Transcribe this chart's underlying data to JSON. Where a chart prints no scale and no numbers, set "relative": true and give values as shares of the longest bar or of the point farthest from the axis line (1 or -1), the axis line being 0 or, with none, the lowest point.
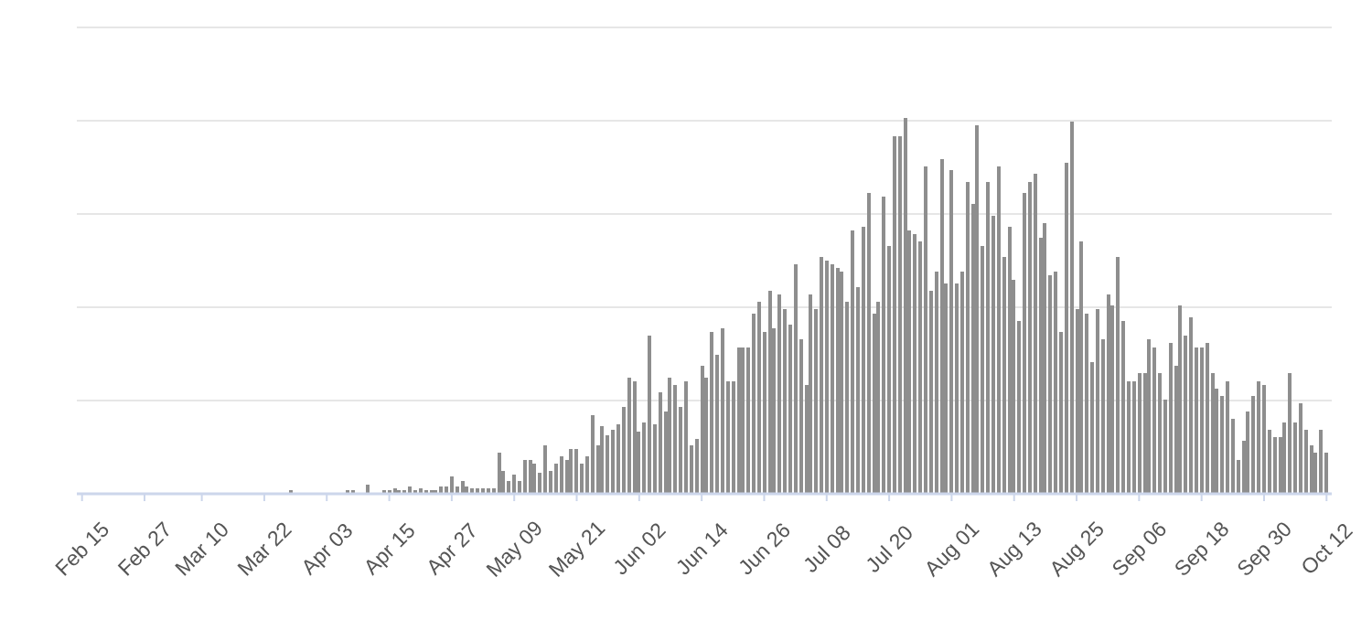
{
  "chart_data": {
    "type": "bar",
    "relative": true,
    "color": "#8e8e8e",
    "grid": "y",
    "tick_labels": "x",
    "legend": false,
    "xlim": [
      "--02-14",
      "--10-13"
    ],
    "xticks": [
      {
        "value": "--02-15",
        "label": "Feb 15"
      },
      {
        "value": "--02-27",
        "label": "Feb 27"
      },
      {
        "value": "--03-10",
        "label": "Mar 10"
      },
      {
        "value": "--03-22",
        "label": "Mar 22"
      },
      {
        "value": "--04-03",
        "label": "Apr 03"
      },
      {
        "value": "--04-15",
        "label": "Apr 15"
      },
      {
        "value": "--04-27",
        "label": "Apr 27"
      },
      {
        "value": "--05-09",
        "label": "May 09"
      },
      {
        "value": "--05-21",
        "label": "May 21"
      },
      {
        "value": "--06-02",
        "label": "Jun 02"
      },
      {
        "value": "--06-14",
        "label": "Jun 14"
      },
      {
        "value": "--06-26",
        "label": "Jun 26"
      },
      {
        "value": "--07-08",
        "label": "Jul 08"
      },
      {
        "value": "--07-20",
        "label": "Jul 20"
      },
      {
        "value": "--08-01",
        "label": "Aug 01"
      },
      {
        "value": "--08-13",
        "label": "Aug 13"
      },
      {
        "value": "--08-25",
        "label": "Aug 25"
      },
      {
        "value": "--09-06",
        "label": "Sep 06"
      },
      {
        "value": "--09-18",
        "label": "Sep 18"
      },
      {
        "value": "--09-30",
        "label": "Sep 30"
      },
      {
        "value": "--10-12",
        "label": "Oct 12"
      }
    ],
    "x": [
      "--03-27",
      "--04-07",
      "--04-08",
      "--04-11",
      "--04-14",
      "--04-15",
      "--04-16",
      "--04-17",
      "--04-18",
      "--04-19",
      "--04-20",
      "--04-21",
      "--04-22",
      "--04-23",
      "--04-24",
      "--04-25",
      "--04-26",
      "--04-27",
      "--04-28",
      "--04-29",
      "--04-30",
      "--05-01",
      "--05-02",
      "--05-03",
      "--05-04",
      "--05-05",
      "--05-06",
      "--05-07",
      "--05-08",
      "--05-09",
      "--05-10",
      "--05-11",
      "--05-12",
      "--05-13",
      "--05-14",
      "--05-15",
      "--05-16",
      "--05-17",
      "--05-18",
      "--05-19",
      "--05-20",
      "--05-21",
      "--05-22",
      "--05-23",
      "--05-24",
      "--05-25",
      "--05-26",
      "--05-27",
      "--05-28",
      "--05-29",
      "--05-30",
      "--05-31",
      "--06-01",
      "--06-02",
      "--06-03",
      "--06-04",
      "--06-05",
      "--06-06",
      "--06-07",
      "--06-08",
      "--06-09",
      "--06-10",
      "--06-11",
      "--06-12",
      "--06-13",
      "--06-14",
      "--06-15",
      "--06-16",
      "--06-17",
      "--06-18",
      "--06-19",
      "--06-20",
      "--06-21",
      "--06-22",
      "--06-23",
      "--06-24",
      "--06-25",
      "--06-26",
      "--06-27",
      "--06-28",
      "--06-29",
      "--06-30",
      "--07-01",
      "--07-02",
      "--07-03",
      "--07-04",
      "--07-05",
      "--07-06",
      "--07-07",
      "--07-08",
      "--07-09",
      "--07-10",
      "--07-11",
      "--07-12",
      "--07-13",
      "--07-14",
      "--07-15",
      "--07-16",
      "--07-17",
      "--07-18",
      "--07-19",
      "--07-20",
      "--07-21",
      "--07-22",
      "--07-23",
      "--07-24",
      "--07-25",
      "--07-26",
      "--07-27",
      "--07-28",
      "--07-29",
      "--07-30",
      "--07-31",
      "--08-01",
      "--08-02",
      "--08-03",
      "--08-04",
      "--08-05",
      "--08-06",
      "--08-07",
      "--08-08",
      "--08-09",
      "--08-10",
      "--08-11",
      "--08-12",
      "--08-13",
      "--08-14",
      "--08-15",
      "--08-16",
      "--08-17",
      "--08-18",
      "--08-19",
      "--08-20",
      "--08-21",
      "--08-22",
      "--08-23",
      "--08-24",
      "--08-25",
      "--08-26",
      "--08-27",
      "--08-28",
      "--08-29",
      "--08-30",
      "--08-31",
      "--09-01",
      "--09-02",
      "--09-03",
      "--09-04",
      "--09-05",
      "--09-06",
      "--09-07",
      "--09-08",
      "--09-09",
      "--09-10",
      "--09-11",
      "--09-12",
      "--09-13",
      "--09-14",
      "--09-15",
      "--09-16",
      "--09-17",
      "--09-18",
      "--09-19",
      "--09-20",
      "--09-21",
      "--09-22",
      "--09-23",
      "--09-24",
      "--09-25",
      "--09-26",
      "--09-27",
      "--09-28",
      "--09-29",
      "--09-30",
      "--10-01",
      "--10-02",
      "--10-03",
      "--10-04",
      "--10-05",
      "--10-06",
      "--10-07",
      "--10-08",
      "--10-09",
      "--10-10",
      "--10-11",
      "--10-12"
    ],
    "values": [
      0.01,
      0.01,
      0.01,
      0.025,
      0.01,
      0.01,
      0.015,
      0.01,
      0.01,
      0.02,
      0.01,
      0.015,
      0.01,
      0.01,
      0.01,
      0.02,
      0.02,
      0.045,
      0.02,
      0.035,
      0.02,
      0.015,
      0.015,
      0.015,
      0.015,
      0.015,
      0.11,
      0.06,
      0.035,
      0.05,
      0.035,
      0.09,
      0.09,
      0.08,
      0.055,
      0.13,
      0.06,
      0.08,
      0.1,
      0.09,
      0.12,
      0.12,
      0.08,
      0.1,
      0.21,
      0.13,
      0.18,
      0.155,
      0.17,
      0.185,
      0.23,
      0.31,
      0.3,
      0.165,
      0.19,
      0.42,
      0.185,
      0.27,
      0.22,
      0.31,
      0.29,
      0.23,
      0.3,
      0.13,
      0.145,
      0.34,
      0.31,
      0.43,
      0.37,
      0.44,
      0.3,
      0.3,
      0.39,
      0.39,
      0.39,
      0.48,
      0.51,
      0.43,
      0.54,
      0.44,
      0.53,
      0.49,
      0.45,
      0.61,
      0.41,
      0.29,
      0.53,
      0.49,
      0.63,
      0.62,
      0.61,
      0.6,
      0.59,
      0.51,
      0.7,
      0.55,
      0.71,
      0.8,
      0.48,
      0.51,
      0.79,
      0.66,
      0.95,
      0.95,
      1,
      0.7,
      0.69,
      0.67,
      0.87,
      0.54,
      0.59,
      0.89,
      0.56,
      0.86,
      0.56,
      0.59,
      0.83,
      0.77,
      0.98,
      0.66,
      0.83,
      0.74,
      0.87,
      0.63,
      0.71,
      0.57,
      0.46,
      0.8,
      0.83,
      0.85,
      0.68,
      0.72,
      0.58,
      0.59,
      0.43,
      0.88,
      0.99,
      0.49,
      0.67,
      0.48,
      0.35,
      0.49,
      0.41,
      0.53,
      0.5,
      0.63,
      0.46,
      0.3,
      0.3,
      0.32,
      0.32,
      0.41,
      0.39,
      0.32,
      0.25,
      0.4,
      0.34,
      0.5,
      0.42,
      0.47,
      0.39,
      0.39,
      0.4,
      0.32,
      0.28,
      0.26,
      0.3,
      0.2,
      0.09,
      0.14,
      0.22,
      0.26,
      0.3,
      0.29,
      0.17,
      0.15,
      0.15,
      0.19,
      0.32,
      0.19,
      0.24,
      0.17,
      0.13,
      0.11,
      0.17,
      0.11
    ]
  }
}
